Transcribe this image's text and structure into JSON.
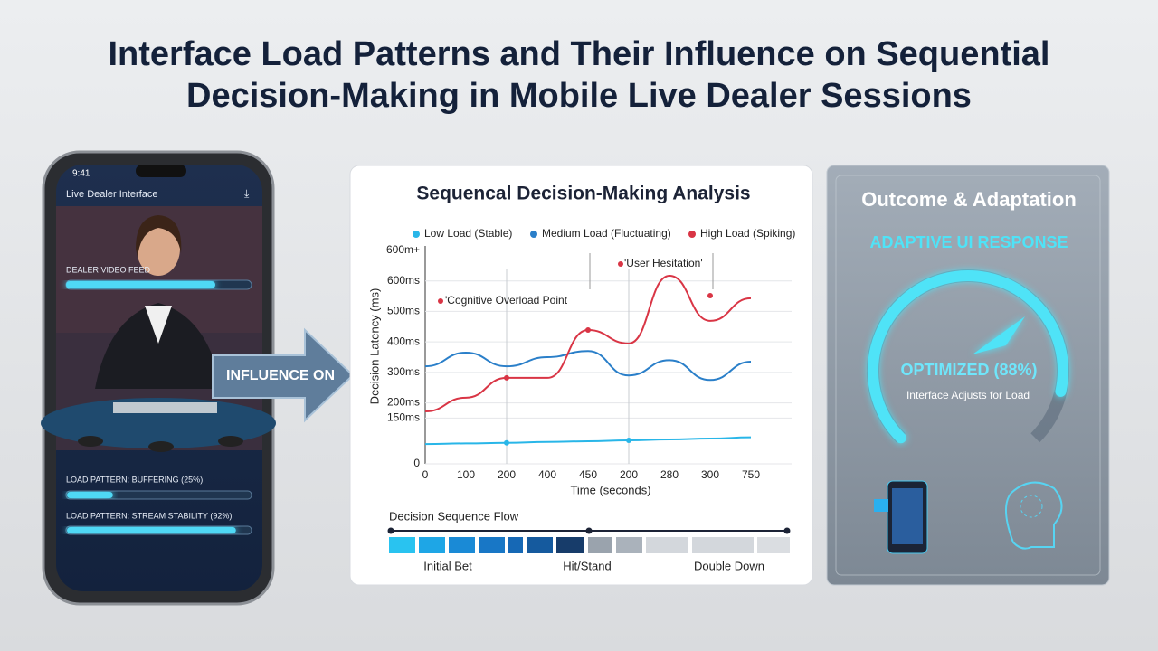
{
  "title": [
    "Interface Load Patterns and Their Influence on Sequential",
    "Decision-Making in Mobile Live Dealer Sessions"
  ],
  "phone": {
    "time": "9:41",
    "header": "Live Dealer Interface",
    "feed_label": "DEALER VIDEO FEED",
    "buffering_label": "LOAD PATTERN: BUFFERING (25%)",
    "buffering_pct": 25,
    "stability_label": "LOAD PATTERN: STREAM STABILITY (92%)",
    "stability_pct": 92
  },
  "arrow_label": "INFLUENCE ON",
  "chart_data": {
    "type": "line",
    "title": "Sequencal Decision-Making Analysis",
    "x_label": "Time (seconds)",
    "y_label": "Decision Latency (ms)",
    "categories": [
      "0",
      "100",
      "200",
      "400",
      "450",
      "200",
      "280",
      "300",
      "750"
    ],
    "ylim": [
      0,
      700
    ],
    "y_top_label": "600m+",
    "yticks": [
      0,
      {
        "value": 150,
        "label": "150ms"
      },
      {
        "value": 200,
        "label": "200ms"
      },
      {
        "value": 300,
        "label": "300ms"
      },
      {
        "value": 400,
        "label": "400ms"
      },
      {
        "value": 500,
        "label": "500ms"
      },
      {
        "value": 600,
        "label": "600ms"
      }
    ],
    "series": [
      {
        "name": "Low Load (Stable)",
        "color": "#29b6e8",
        "values": [
          65,
          67,
          69,
          72,
          74,
          77,
          80,
          83,
          87
        ]
      },
      {
        "name": "Medium Load (Fluctuating)",
        "color": "#2a7fc9",
        "values": [
          320,
          365,
          320,
          350,
          370,
          290,
          340,
          275,
          335
        ]
      },
      {
        "name": "High Load (Spiking)",
        "color": "#d93545",
        "values": [
          172,
          217,
          282,
          282,
          439,
          395,
          617,
          469,
          543
        ]
      }
    ],
    "annotations": [
      "'Cognitive Overload Point",
      "'User Hesitation'"
    ],
    "flow": {
      "title": "Decision Sequence Flow",
      "steps": [
        "Initial Bet",
        "Hit/Stand",
        "Double Down"
      ]
    }
  },
  "outcome": {
    "title": "Outcome & Adaptation",
    "subtitle": "ADAPTIVE UI RESPONSE",
    "gauge_label": "OPTIMIZED (88%)",
    "gauge_value": 88,
    "caption": "Interface Adjusts for Load"
  }
}
